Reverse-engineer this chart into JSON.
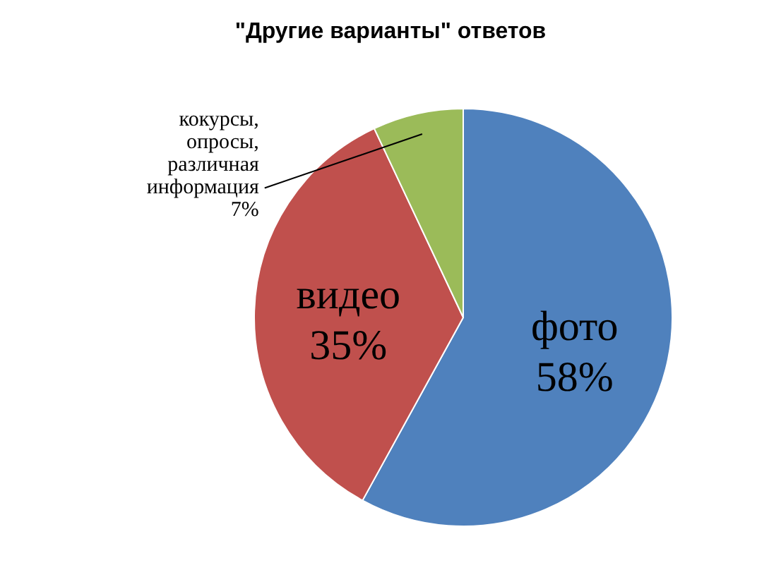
{
  "chart_data": {
    "type": "pie",
    "title": "\"Другие варианты\" ответов",
    "categories": [
      "фото",
      "видео",
      "кокурсы, опросы, различная информация"
    ],
    "values": [
      58,
      35,
      7
    ],
    "colors": [
      "#4f81bd",
      "#c0504d",
      "#9bbb59"
    ],
    "value_labels": [
      "58%",
      "35%",
      "7%"
    ]
  }
}
